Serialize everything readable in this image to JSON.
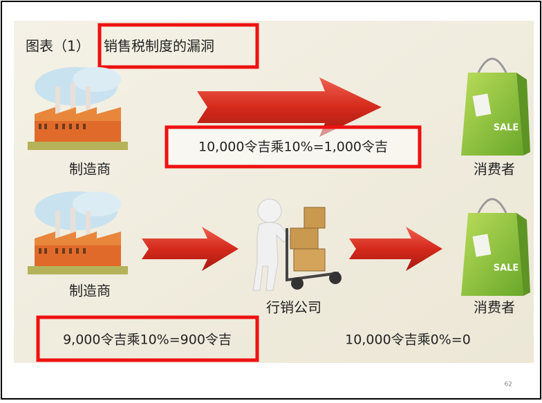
{
  "header": {
    "figure_label": "图表（1）",
    "title": "销售税制度的漏洞"
  },
  "nodes": [
    {
      "label": "制造商"
    },
    {
      "label": "消费者"
    },
    {
      "label": "制造商"
    },
    {
      "label": "行销公司"
    },
    {
      "label": "消费者"
    }
  ],
  "annotations": [
    "10,000令吉乘10%=1,000令吉",
    "9,000令吉乘10%=900令吉",
    "10,000令吉乘0%=0"
  ],
  "footer": {
    "page_number": "62"
  }
}
